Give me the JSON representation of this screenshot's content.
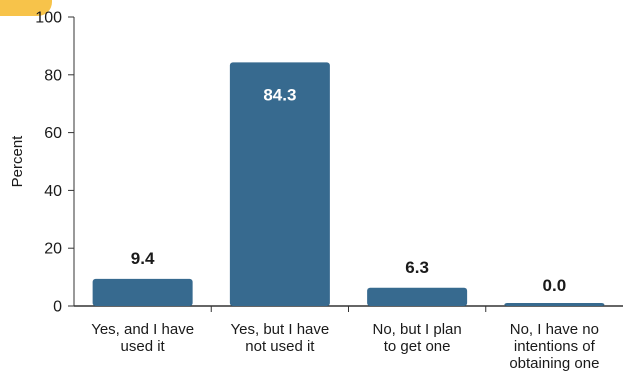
{
  "chart_data": {
    "type": "bar",
    "title": "",
    "xlabel": "",
    "ylabel": "Percent",
    "ylim": [
      0,
      100
    ],
    "yticks": [
      0,
      20,
      40,
      60,
      80,
      100
    ],
    "grid": false,
    "categories": [
      [
        "Yes, and I have",
        "used it"
      ],
      [
        "Yes, but I have",
        "not used it"
      ],
      [
        "No, but I plan",
        "to get one"
      ],
      [
        "No, I have no",
        "intentions of",
        "obtaining one"
      ]
    ],
    "values": [
      9.4,
      84.3,
      6.3,
      0.0
    ],
    "data_labels": [
      "9.4",
      "84.3",
      "6.3",
      "0.0"
    ],
    "colors": {
      "bar": "#376a8f",
      "axis": "#333333",
      "label_outside": "#1a1a1a",
      "label_inside": "#ffffff",
      "corner_accent": "#f7c34a"
    }
  }
}
